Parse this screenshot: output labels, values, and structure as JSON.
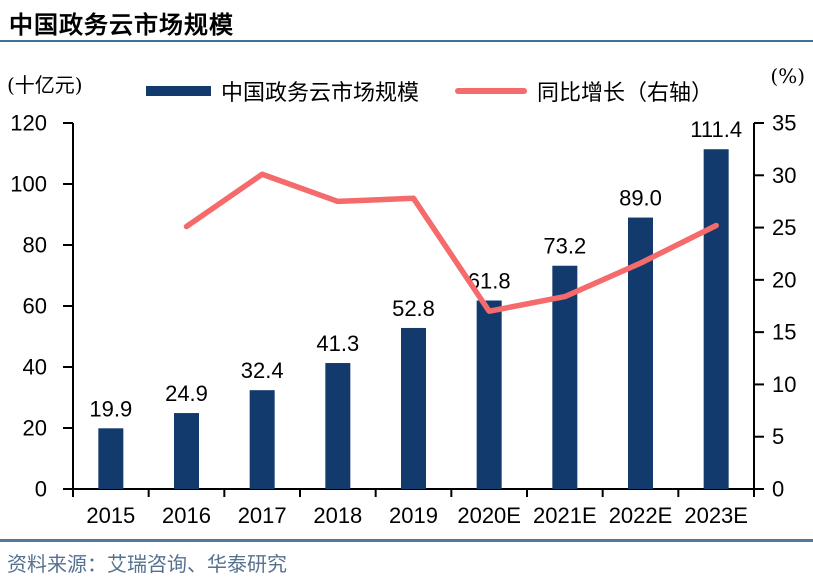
{
  "header": {
    "title": "中国政务云市场规模"
  },
  "footer": {
    "source": "资料来源：艾瑞咨询、华泰研究"
  },
  "colors": {
    "bar": "#123a6d",
    "line": "#f56a6a",
    "title_rule": "#41719c",
    "source_rule": "#54779b",
    "source_text": "#567190",
    "axis": "#000000"
  },
  "chart_data": {
    "type": "bar",
    "subtype": "combo-bar-line-dual-axis",
    "title": "中国政务云市场规模",
    "categories": [
      "2015",
      "2016",
      "2017",
      "2018",
      "2019",
      "2020E",
      "2021E",
      "2022E",
      "2023E"
    ],
    "series": [
      {
        "name": "中国政务云市场规模",
        "type": "bar",
        "axis": "left",
        "color": "#123a6d",
        "values": [
          19.9,
          24.9,
          32.4,
          41.3,
          52.8,
          61.8,
          73.2,
          89.0,
          111.4
        ],
        "data_labels": [
          "19.9",
          "24.9",
          "32.4",
          "41.3",
          "52.8",
          "61.8",
          "73.2",
          "89.0",
          "111.4"
        ]
      },
      {
        "name": "同比增长（右轴）",
        "type": "line",
        "axis": "right",
        "color": "#f56a6a",
        "values": [
          null,
          25.1,
          30.1,
          27.5,
          27.8,
          17.0,
          18.4,
          21.6,
          25.2
        ]
      }
    ],
    "left_axis": {
      "unit": "(十亿元)",
      "min": 0,
      "max": 120,
      "step": 20,
      "ticks": [
        0,
        20,
        40,
        60,
        80,
        100,
        120
      ]
    },
    "right_axis": {
      "unit": "(%)",
      "min": 0,
      "max": 35,
      "step": 5,
      "ticks": [
        0,
        5,
        10,
        15,
        20,
        25,
        30,
        35
      ]
    },
    "legend_position": "top",
    "grid": false
  }
}
